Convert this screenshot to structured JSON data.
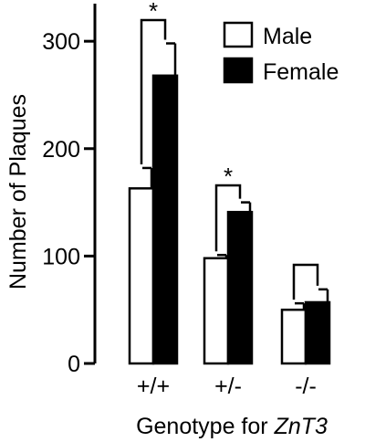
{
  "chart_data": {
    "type": "bar",
    "categories": [
      "+/+",
      "+/-",
      "-/-"
    ],
    "series": [
      {
        "name": "Male",
        "values": [
          163,
          98,
          50
        ],
        "errors": [
          19,
          3,
          6
        ],
        "fill": "#ffffff"
      },
      {
        "name": "Female",
        "values": [
          268,
          141,
          57
        ],
        "errors": [
          30,
          9,
          12
        ],
        "fill": "#000000"
      }
    ],
    "ylabel": "Number of Plaques",
    "xlabel_prefix": "Genotype for ",
    "xlabel_italic": "ZnT3",
    "ylim": [
      0,
      335
    ],
    "yticks": [
      0,
      100,
      200,
      300
    ],
    "legend_position": "top-right",
    "significance": [
      "*",
      "*",
      ""
    ],
    "grid": false
  }
}
